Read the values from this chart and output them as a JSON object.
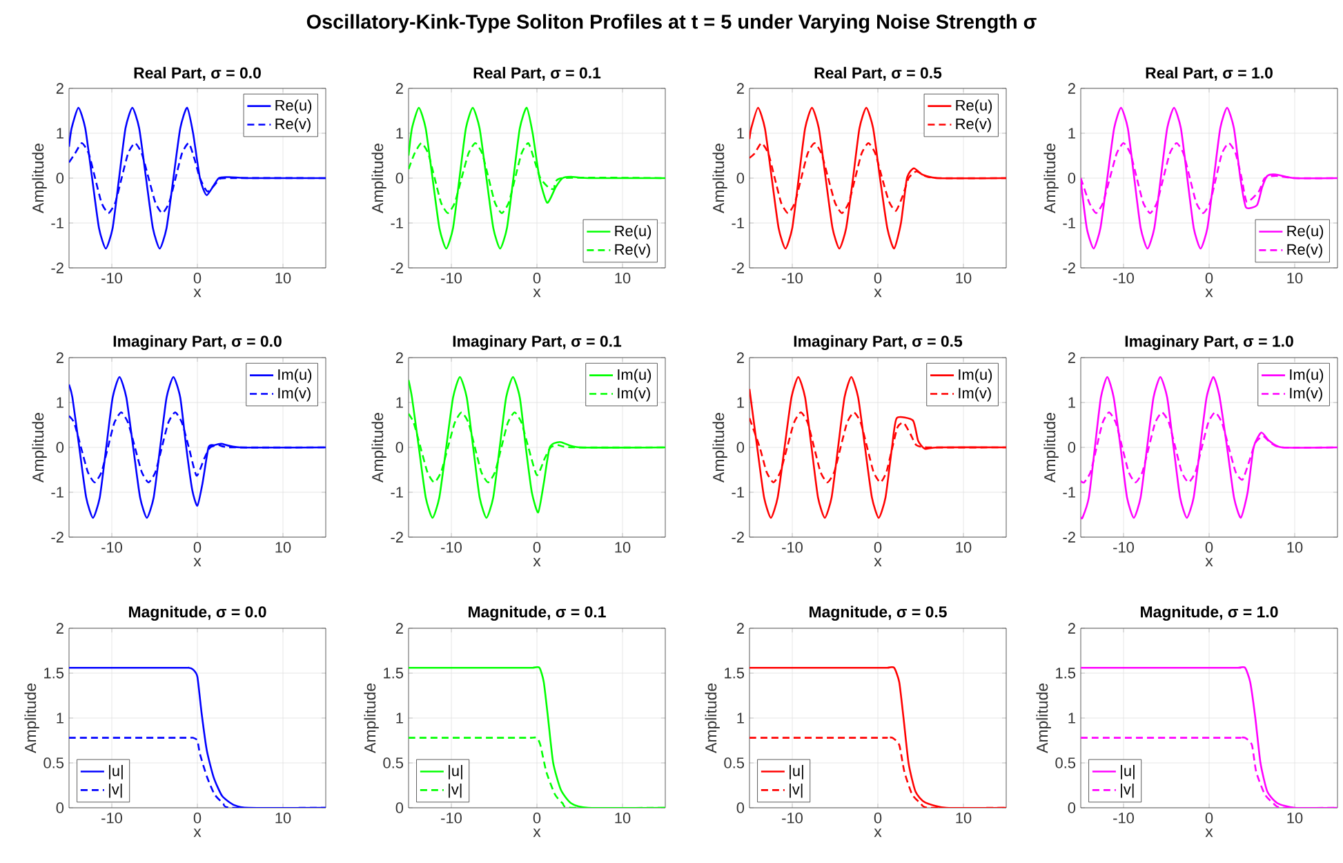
{
  "chart_data": [
    {
      "type": "line",
      "title": "Real Part, σ = 0.0",
      "xlabel": "x",
      "ylabel": "Amplitude",
      "xlim": [
        -15,
        15
      ],
      "ylim": [
        -2,
        2
      ],
      "xticks": [
        -10,
        0,
        10
      ],
      "yticks": [
        -2,
        -1,
        0,
        1,
        2
      ],
      "grid": true,
      "legend": "top right",
      "annotations": [
        "Oscillatory-Kink-Type Soliton Profiles at t = 5 under Varying Noise Strength σ"
      ],
      "series": [
        {
          "name": "Re(u)",
          "color": "#0000ff",
          "line_style": "solid",
          "x": [
            -15,
            -14.7,
            -13.9,
            -13.1,
            -12.3,
            -11.5,
            -10.7,
            -9.9,
            -9.15,
            -8.4,
            -7.6,
            -6.8,
            -6.0,
            -5.2,
            -4.4,
            -3.6,
            -2.8,
            -2.0,
            -1.2,
            -0.5,
            0.3,
            1.1,
            2.5,
            4,
            6,
            15
          ],
          "values": [
            0.7,
            1.11,
            1.57,
            1.11,
            0,
            -1.11,
            -1.57,
            -1.11,
            0,
            1.11,
            1.57,
            1.11,
            0,
            -1.11,
            -1.57,
            -1.11,
            0,
            1.11,
            1.57,
            1.0,
            0,
            -0.38,
            0,
            0.02,
            0,
            0
          ]
        },
        {
          "name": "Re(v)",
          "color": "#0000ff",
          "line_style": "dashed",
          "x": [
            -15,
            -14.3,
            -13.5,
            -12.7,
            -11.95,
            -11.2,
            -10.4,
            -9.6,
            -8.85,
            -8.1,
            -7.3,
            -6.5,
            -5.7,
            -4.9,
            -4.1,
            -3.3,
            -2.55,
            -1.8,
            -1.0,
            -0.3,
            0.3,
            1.2,
            2.5,
            3.5,
            15
          ],
          "values": [
            0.35,
            0.55,
            0.78,
            0.55,
            0,
            -0.55,
            -0.78,
            -0.55,
            0,
            0.55,
            0.78,
            0.55,
            0,
            -0.55,
            -0.78,
            -0.55,
            0,
            0.55,
            0.78,
            0.4,
            0,
            -0.3,
            -0.05,
            0,
            0
          ]
        }
      ]
    },
    {
      "type": "line",
      "title": "Real Part, σ = 0.1",
      "xlabel": "x",
      "ylabel": "Amplitude",
      "xlim": [
        -15,
        15
      ],
      "ylim": [
        -2,
        2
      ],
      "xticks": [
        -10,
        0,
        10
      ],
      "yticks": [
        -2,
        -1,
        0,
        1,
        2
      ],
      "grid": true,
      "legend": "bottom right",
      "series": [
        {
          "name": "Re(u)",
          "color": "#00ff00",
          "line_style": "solid",
          "x": [
            -15,
            -14.6,
            -13.8,
            -13.0,
            -12.2,
            -11.4,
            -10.6,
            -9.8,
            -9.05,
            -8.3,
            -7.5,
            -6.7,
            -5.9,
            -5.1,
            -4.3,
            -3.5,
            -2.75,
            -2.0,
            -1.2,
            -0.5,
            0.3,
            1.2,
            2.2,
            3,
            4,
            6,
            15
          ],
          "values": [
            0.5,
            1.11,
            1.57,
            1.11,
            0,
            -1.11,
            -1.57,
            -1.11,
            0,
            1.11,
            1.57,
            1.11,
            0,
            -1.11,
            -1.57,
            -1.11,
            0,
            1.11,
            1.57,
            1.0,
            0,
            -0.55,
            -0.2,
            0,
            0.03,
            0,
            0
          ]
        },
        {
          "name": "Re(v)",
          "color": "#00ff00",
          "line_style": "dashed",
          "x": [
            -15,
            -14.3,
            -13.5,
            -12.7,
            -11.95,
            -11.2,
            -10.4,
            -9.6,
            -8.8,
            -8.0,
            -7.2,
            -6.4,
            -5.65,
            -4.9,
            -4.1,
            -3.3,
            -2.55,
            -1.8,
            -1.0,
            -0.3,
            0.4,
            1.3,
            2,
            3,
            15
          ],
          "values": [
            0.2,
            0.55,
            0.78,
            0.55,
            0,
            -0.55,
            -0.78,
            -0.55,
            0,
            0.55,
            0.78,
            0.55,
            0,
            -0.55,
            -0.78,
            -0.55,
            0,
            0.55,
            0.78,
            0.4,
            0,
            -0.2,
            -0.24,
            0,
            0
          ]
        }
      ]
    },
    {
      "type": "line",
      "title": "Real Part, σ = 0.5",
      "xlabel": "x",
      "ylabel": "Amplitude",
      "xlim": [
        -15,
        15
      ],
      "ylim": [
        -2,
        2
      ],
      "xticks": [
        -10,
        0,
        10
      ],
      "yticks": [
        -2,
        -1,
        0,
        1,
        2
      ],
      "grid": true,
      "legend": "top right",
      "series": [
        {
          "name": "Re(u)",
          "color": "#ff0000",
          "line_style": "solid",
          "x": [
            -15,
            -14.8,
            -14.0,
            -13.2,
            -12.4,
            -11.6,
            -10.8,
            -10.0,
            -9.25,
            -8.5,
            -7.7,
            -6.9,
            -6.1,
            -5.3,
            -4.5,
            -3.7,
            -2.9,
            -2.15,
            -1.35,
            -0.55,
            0.25,
            1.1,
            1.9,
            2.7,
            3.4,
            4.2,
            5.2,
            7,
            15
          ],
          "values": [
            0.87,
            1.11,
            1.57,
            1.11,
            0,
            -1.11,
            -1.57,
            -1.11,
            0,
            1.11,
            1.57,
            1.11,
            0,
            -1.11,
            -1.57,
            -1.11,
            0,
            1.11,
            1.57,
            1.11,
            0,
            -1.11,
            -1.57,
            -1.0,
            0,
            0.22,
            0.08,
            0,
            0
          ]
        },
        {
          "name": "Re(v)",
          "color": "#ff0000",
          "line_style": "dashed",
          "x": [
            -15,
            -14.4,
            -13.6,
            -12.8,
            -12.05,
            -11.3,
            -10.5,
            -9.7,
            -8.95,
            -8.2,
            -7.4,
            -6.6,
            -5.8,
            -5.0,
            -4.2,
            -3.4,
            -2.65,
            -1.9,
            -1.1,
            -0.3,
            0.5,
            1.3,
            2.1,
            2.9,
            3.6,
            4.5,
            5.5,
            7,
            15
          ],
          "values": [
            0.45,
            0.55,
            0.78,
            0.55,
            0,
            -0.55,
            -0.78,
            -0.55,
            0,
            0.55,
            0.78,
            0.55,
            0,
            -0.55,
            -0.78,
            -0.55,
            0,
            0.55,
            0.78,
            0.55,
            0,
            -0.52,
            -0.73,
            -0.4,
            0,
            0.15,
            0.05,
            0,
            0
          ]
        }
      ]
    },
    {
      "type": "line",
      "title": "Real Part, σ = 1.0",
      "xlabel": "x",
      "ylabel": "Amplitude",
      "xlim": [
        -15,
        15
      ],
      "ylim": [
        -2,
        2
      ],
      "xticks": [
        -10,
        0,
        10
      ],
      "yticks": [
        -2,
        -1,
        0,
        1,
        2
      ],
      "grid": true,
      "legend": "bottom right",
      "series": [
        {
          "name": "Re(u)",
          "color": "#ff00ff",
          "line_style": "solid",
          "x": [
            -15,
            -14.3,
            -13.5,
            -12.7,
            -11.9,
            -11.1,
            -10.3,
            -9.5,
            -8.75,
            -8.0,
            -7.2,
            -6.4,
            -5.65,
            -4.9,
            -4.1,
            -3.3,
            -2.55,
            -1.8,
            -1.0,
            -0.2,
            0.55,
            1.3,
            2.1,
            2.9,
            3.65,
            4.3,
            5.6,
            6.2,
            6.8,
            7.8,
            10,
            15
          ],
          "values": [
            -0.05,
            -1.11,
            -1.57,
            -1.11,
            0,
            1.11,
            1.57,
            1.11,
            0,
            -1.11,
            -1.57,
            -1.11,
            0,
            1.11,
            1.57,
            1.11,
            0,
            -1.11,
            -1.57,
            -1.11,
            0,
            1.11,
            1.57,
            1.11,
            0,
            -0.65,
            -0.6,
            -0.2,
            0.05,
            0.08,
            0,
            0
          ]
        },
        {
          "name": "Re(v)",
          "color": "#ff00ff",
          "line_style": "dashed",
          "x": [
            -15,
            -14.0,
            -13.2,
            -12.4,
            -11.6,
            -10.8,
            -10.0,
            -9.2,
            -8.45,
            -7.7,
            -6.9,
            -6.1,
            -5.35,
            -4.6,
            -3.8,
            -3.0,
            -2.25,
            -1.5,
            -0.7,
            0.1,
            0.8,
            1.5,
            2.3,
            3.1,
            3.8,
            4.4,
            5.8,
            6.5,
            7.8,
            10,
            15
          ],
          "values": [
            0,
            -0.55,
            -0.78,
            -0.55,
            0,
            0.55,
            0.78,
            0.55,
            0,
            -0.55,
            -0.78,
            -0.55,
            0,
            0.55,
            0.78,
            0.55,
            0,
            -0.55,
            -0.78,
            -0.55,
            0,
            0.55,
            0.78,
            0.55,
            0,
            -0.53,
            -0.3,
            0,
            0.05,
            0,
            0
          ]
        }
      ]
    },
    {
      "type": "line",
      "title": "Imaginary Part, σ = 0.0",
      "xlabel": "x",
      "ylabel": "Amplitude",
      "xlim": [
        -15,
        15
      ],
      "ylim": [
        -2,
        2
      ],
      "xticks": [
        -10,
        0,
        10
      ],
      "yticks": [
        -2,
        -1,
        0,
        1,
        2
      ],
      "grid": true,
      "legend": "top right",
      "series": [
        {
          "name": "Im(u)",
          "color": "#0000ff",
          "line_style": "solid",
          "x": [
            -15,
            -14.6,
            -13.8,
            -13.0,
            -12.2,
            -11.4,
            -10.65,
            -9.9,
            -9.1,
            -8.3,
            -7.5,
            -6.7,
            -5.9,
            -5.1,
            -4.35,
            -3.6,
            -2.8,
            -2.0,
            -1.3,
            -0.6,
            0.0,
            0.6,
            1.3,
            2.0,
            2.8,
            5,
            15
          ],
          "values": [
            1.4,
            1.11,
            0,
            -1.11,
            -1.57,
            -1.11,
            0,
            1.11,
            1.57,
            1.11,
            0,
            -1.11,
            -1.57,
            -1.11,
            0,
            1.11,
            1.57,
            1.11,
            0,
            -0.95,
            -1.3,
            -0.8,
            0,
            0.05,
            0.08,
            0,
            0
          ]
        },
        {
          "name": "Im(v)",
          "color": "#0000ff",
          "line_style": "dashed",
          "x": [
            -15,
            -14.4,
            -13.6,
            -12.8,
            -12.0,
            -11.2,
            -10.45,
            -9.7,
            -8.9,
            -8.1,
            -7.3,
            -6.5,
            -5.7,
            -4.9,
            -4.15,
            -3.4,
            -2.6,
            -1.8,
            -1.0,
            -0.1,
            0.8,
            1.5,
            2.5,
            4,
            15
          ],
          "values": [
            0.7,
            0.55,
            0,
            -0.55,
            -0.78,
            -0.55,
            0,
            0.55,
            0.78,
            0.55,
            0,
            -0.55,
            -0.78,
            -0.55,
            0,
            0.55,
            0.78,
            0.55,
            0,
            -0.63,
            -0.25,
            0,
            0.05,
            0,
            0
          ]
        }
      ]
    },
    {
      "type": "line",
      "title": "Imaginary Part, σ = 0.1",
      "xlabel": "x",
      "ylabel": "Amplitude",
      "xlim": [
        -15,
        15
      ],
      "ylim": [
        -2,
        2
      ],
      "xticks": [
        -10,
        0,
        10
      ],
      "yticks": [
        -2,
        -1,
        0,
        1,
        2
      ],
      "grid": true,
      "legend": "top right",
      "series": [
        {
          "name": "Im(u)",
          "color": "#00ff00",
          "line_style": "solid",
          "x": [
            -15,
            -14.6,
            -13.8,
            -13.0,
            -12.2,
            -11.4,
            -10.6,
            -9.8,
            -9.0,
            -8.2,
            -7.45,
            -6.7,
            -5.9,
            -5.1,
            -4.35,
            -3.6,
            -2.8,
            -2.0,
            -1.3,
            -0.6,
            0.15,
            0.8,
            1.5,
            2.7,
            5,
            15
          ],
          "values": [
            1.5,
            1.11,
            0,
            -1.11,
            -1.57,
            -1.11,
            0,
            1.11,
            1.57,
            1.11,
            0,
            -1.11,
            -1.57,
            -1.11,
            0,
            1.11,
            1.57,
            1.11,
            0,
            -1.0,
            -1.45,
            -0.8,
            0,
            0.12,
            0,
            0
          ]
        },
        {
          "name": "Im(v)",
          "color": "#00ff00",
          "line_style": "dashed",
          "x": [
            -15,
            -14.4,
            -13.6,
            -12.8,
            -12.0,
            -11.2,
            -10.4,
            -9.6,
            -8.8,
            -8.0,
            -7.25,
            -6.5,
            -5.7,
            -4.9,
            -4.15,
            -3.4,
            -2.6,
            -1.8,
            -1.0,
            0.0,
            0.9,
            1.6,
            2.5,
            4,
            15
          ],
          "values": [
            0.75,
            0.55,
            0,
            -0.55,
            -0.78,
            -0.55,
            0,
            0.55,
            0.78,
            0.55,
            0,
            -0.55,
            -0.78,
            -0.55,
            0,
            0.55,
            0.78,
            0.55,
            0,
            -0.62,
            -0.25,
            0,
            0.05,
            0,
            0
          ]
        }
      ]
    },
    {
      "type": "line",
      "title": "Imaginary Part, σ = 0.5",
      "xlabel": "x",
      "ylabel": "Amplitude",
      "xlim": [
        -15,
        15
      ],
      "ylim": [
        -2,
        2
      ],
      "xticks": [
        -10,
        0,
        10
      ],
      "yticks": [
        -2,
        -1,
        0,
        1,
        2
      ],
      "grid": true,
      "legend": "top right",
      "series": [
        {
          "name": "Im(u)",
          "color": "#ff0000",
          "line_style": "solid",
          "x": [
            -15,
            -14.1,
            -13.3,
            -12.5,
            -11.7,
            -10.9,
            -10.1,
            -9.3,
            -8.5,
            -7.75,
            -7.0,
            -6.2,
            -5.4,
            -4.65,
            -3.9,
            -3.1,
            -2.3,
            -1.5,
            -0.7,
            0.1,
            0.9,
            1.65,
            2.2,
            4.1,
            4.7,
            5.5,
            7,
            15
          ],
          "values": [
            1.3,
            0,
            -1.11,
            -1.57,
            -1.11,
            0,
            1.11,
            1.57,
            1.11,
            0,
            -1.11,
            -1.57,
            -1.11,
            0,
            1.11,
            1.57,
            1.11,
            0,
            -1.11,
            -1.57,
            -1.11,
            0,
            0.65,
            0.6,
            0.15,
            -0.03,
            0,
            0
          ]
        },
        {
          "name": "Im(v)",
          "color": "#ff0000",
          "line_style": "dashed",
          "x": [
            -15,
            -13.8,
            -13.0,
            -12.2,
            -11.4,
            -10.6,
            -9.8,
            -9.0,
            -8.2,
            -7.45,
            -6.7,
            -5.9,
            -5.1,
            -4.35,
            -3.6,
            -2.8,
            -2.0,
            -1.25,
            -0.5,
            0.3,
            1.0,
            1.7,
            2.3,
            3.0,
            3.8,
            4.5,
            6,
            15
          ],
          "values": [
            0.65,
            0,
            -0.55,
            -0.78,
            -0.55,
            0,
            0.55,
            0.78,
            0.55,
            0,
            -0.55,
            -0.78,
            -0.55,
            0,
            0.55,
            0.78,
            0.55,
            0,
            -0.55,
            -0.78,
            -0.55,
            0,
            0.45,
            0.55,
            0.3,
            0.05,
            0,
            0
          ]
        }
      ]
    },
    {
      "type": "line",
      "title": "Imaginary Part, σ = 1.0",
      "xlabel": "x",
      "ylabel": "Amplitude",
      "xlim": [
        -15,
        15
      ],
      "ylim": [
        -2,
        2
      ],
      "xticks": [
        -10,
        0,
        10
      ],
      "yticks": [
        -2,
        -1,
        0,
        1,
        2
      ],
      "grid": true,
      "legend": "top right",
      "series": [
        {
          "name": "Im(u)",
          "color": "#ff00ff",
          "line_style": "solid",
          "x": [
            -15,
            -14.8,
            -14.05,
            -13.35,
            -12.65,
            -11.9,
            -11.15,
            -10.35,
            -9.6,
            -8.8,
            -8.0,
            -7.25,
            -6.5,
            -5.7,
            -4.9,
            -4.15,
            -3.4,
            -2.6,
            -1.8,
            -1.05,
            -0.3,
            0.5,
            1.2,
            2.1,
            2.9,
            3.7,
            4.5,
            5.2,
            6.1,
            7,
            8.5,
            15
          ],
          "values": [
            -1.55,
            -1.57,
            -1.11,
            0,
            1.11,
            1.57,
            1.11,
            0,
            -1.11,
            -1.57,
            -1.11,
            0,
            1.11,
            1.57,
            1.11,
            0,
            -1.11,
            -1.57,
            -1.11,
            0,
            1.11,
            1.57,
            1.15,
            0,
            -1.11,
            -1.57,
            -1.0,
            0,
            0.33,
            0.15,
            0,
            0
          ]
        },
        {
          "name": "Im(v)",
          "color": "#ff00ff",
          "line_style": "dashed",
          "x": [
            -15,
            -14.6,
            -13.85,
            -13.15,
            -12.45,
            -11.7,
            -10.9,
            -10.15,
            -9.4,
            -8.6,
            -7.8,
            -7.05,
            -6.3,
            -5.5,
            -4.7,
            -3.95,
            -3.2,
            -2.4,
            -1.6,
            -0.85,
            -0.1,
            0.7,
            1.5,
            2.3,
            3.1,
            3.9,
            4.7,
            5.4,
            6.3,
            7.2,
            8.5,
            15
          ],
          "values": [
            -0.75,
            -0.78,
            -0.55,
            0,
            0.55,
            0.78,
            0.55,
            0,
            -0.55,
            -0.78,
            -0.55,
            0,
            0.55,
            0.78,
            0.55,
            0,
            -0.55,
            -0.78,
            -0.55,
            0,
            0.55,
            0.78,
            0.55,
            0,
            -0.55,
            -0.72,
            -0.3,
            0.1,
            0.25,
            0.1,
            0,
            0
          ]
        }
      ]
    },
    {
      "type": "line",
      "title": "Magnitude, σ = 0.0",
      "xlabel": "x",
      "ylabel": "Amplitude",
      "xlim": [
        -15,
        15
      ],
      "ylim": [
        0,
        2
      ],
      "xticks": [
        -10,
        0,
        10
      ],
      "yticks": [
        0,
        0.5,
        1,
        1.5,
        2
      ],
      "grid": true,
      "legend": "bottom left",
      "series": [
        {
          "name": "|u|",
          "color": "#0000ff",
          "line_style": "solid",
          "x": [
            -15,
            -2,
            -1,
            -0.5,
            0,
            0.5,
            1.1,
            1.9,
            2.9,
            4.3,
            6,
            15
          ],
          "values": [
            1.56,
            1.56,
            1.56,
            1.54,
            1.46,
            1.05,
            0.64,
            0.34,
            0.13,
            0.03,
            0,
            0
          ]
        },
        {
          "name": "|v|",
          "color": "#0000ff",
          "line_style": "dashed",
          "x": [
            -15,
            -2,
            -1,
            -0.5,
            0,
            0.3,
            1.1,
            2,
            3,
            4,
            15
          ],
          "values": [
            0.78,
            0.78,
            0.78,
            0.78,
            0.75,
            0.6,
            0.35,
            0.15,
            0.05,
            0,
            0
          ]
        }
      ]
    },
    {
      "type": "line",
      "title": "Magnitude, σ = 0.1",
      "xlabel": "x",
      "ylabel": "Amplitude",
      "xlim": [
        -15,
        15
      ],
      "ylim": [
        0,
        2
      ],
      "xticks": [
        -10,
        0,
        10
      ],
      "yticks": [
        0,
        0.5,
        1,
        1.5,
        2
      ],
      "grid": true,
      "legend": "bottom left",
      "series": [
        {
          "name": "|u|",
          "color": "#00ff00",
          "line_style": "solid",
          "x": [
            -15,
            -1.2,
            -0.5,
            0.3,
            0.8,
            1.3,
            1.9,
            2.8,
            4,
            6,
            15
          ],
          "values": [
            1.56,
            1.56,
            1.56,
            1.56,
            1.4,
            1.0,
            0.5,
            0.2,
            0.05,
            0,
            0
          ]
        },
        {
          "name": "|v|",
          "color": "#00ff00",
          "line_style": "dashed",
          "x": [
            -15,
            -1.5,
            -0.7,
            0,
            0.4,
            1.1,
            2.1,
            3,
            4,
            15
          ],
          "values": [
            0.78,
            0.78,
            0.78,
            0.78,
            0.7,
            0.4,
            0.15,
            0.05,
            0,
            0
          ]
        }
      ]
    },
    {
      "type": "line",
      "title": "Magnitude, σ = 0.5",
      "xlabel": "x",
      "ylabel": "Amplitude",
      "xlim": [
        -15,
        15
      ],
      "ylim": [
        0,
        2
      ],
      "xticks": [
        -10,
        0,
        10
      ],
      "yticks": [
        0,
        0.5,
        1,
        1.5,
        2
      ],
      "grid": true,
      "legend": "bottom left",
      "series": [
        {
          "name": "|u|",
          "color": "#ff0000",
          "line_style": "solid",
          "x": [
            -15,
            0.4,
            1.1,
            1.9,
            2.5,
            3.0,
            3.6,
            4.4,
            5.5,
            8,
            15
          ],
          "values": [
            1.56,
            1.56,
            1.56,
            1.56,
            1.4,
            1.0,
            0.49,
            0.18,
            0.06,
            0,
            0
          ]
        },
        {
          "name": "|v|",
          "color": "#ff0000",
          "line_style": "dashed",
          "x": [
            -15,
            0.2,
            0.9,
            1.7,
            2.5,
            3.1,
            4.0,
            5,
            6,
            15
          ],
          "values": [
            0.78,
            0.78,
            0.78,
            0.78,
            0.7,
            0.4,
            0.15,
            0.05,
            0,
            0
          ]
        }
      ]
    },
    {
      "type": "line",
      "title": "Magnitude, σ = 1.0",
      "xlabel": "x",
      "ylabel": "Amplitude",
      "xlim": [
        -15,
        15
      ],
      "ylim": [
        0,
        2
      ],
      "xticks": [
        -10,
        0,
        10
      ],
      "yticks": [
        0,
        0.5,
        1,
        1.5,
        2
      ],
      "grid": true,
      "legend": "bottom left",
      "series": [
        {
          "name": "|u|",
          "color": "#ff00ff",
          "line_style": "solid",
          "x": [
            -15,
            2.7,
            3.4,
            4.2,
            4.8,
            5.4,
            6.0,
            6.8,
            8,
            10,
            15
          ],
          "values": [
            1.56,
            1.56,
            1.56,
            1.56,
            1.4,
            1.0,
            0.5,
            0.18,
            0.05,
            0,
            0
          ]
        },
        {
          "name": "|v|",
          "color": "#ff00ff",
          "line_style": "dashed",
          "x": [
            -15,
            2.7,
            3.4,
            4.2,
            5.0,
            5.5,
            6.5,
            7.5,
            8.5,
            15
          ],
          "values": [
            0.78,
            0.78,
            0.78,
            0.78,
            0.7,
            0.4,
            0.15,
            0.05,
            0,
            0
          ]
        }
      ]
    }
  ]
}
